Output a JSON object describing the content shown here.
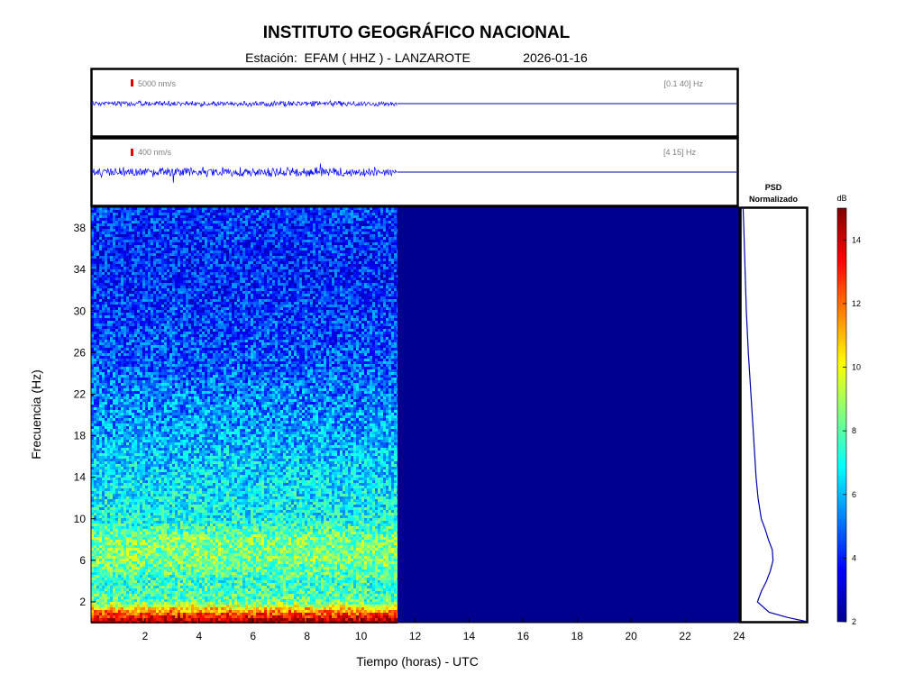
{
  "header": {
    "title": "INSTITUTO GEOGRÁFICO NACIONAL",
    "station_label": "Estación:",
    "station": "EFAM ( HHZ ) - LANZAROTE",
    "date": "2026-01-16"
  },
  "chart_data": [
    {
      "type": "line",
      "panel": "waveform-broadband",
      "scale_label": "5000 nm/s",
      "filter_label": "[0.1 40] Hz",
      "x_range": [
        0,
        24
      ],
      "data_end_hour": 11.35,
      "color": "#0000ff"
    },
    {
      "type": "line",
      "panel": "waveform-filtered",
      "scale_label": "400 nm/s",
      "filter_label": "[4 15] Hz",
      "x_range": [
        0,
        24
      ],
      "data_end_hour": 11.35,
      "color": "#0000ff"
    },
    {
      "type": "heatmap",
      "panel": "spectrogram",
      "xlabel": "Tiempo (horas) - UTC",
      "ylabel": "Frecuencia  (Hz)",
      "xlim": [
        0,
        24
      ],
      "ylim": [
        0,
        40
      ],
      "x_ticks": [
        2,
        4,
        6,
        8,
        10,
        12,
        14,
        16,
        18,
        20,
        22,
        24
      ],
      "y_ticks": [
        2,
        6,
        10,
        14,
        18,
        22,
        26,
        30,
        34,
        38
      ],
      "data_end_hour": 11.35,
      "colorbar": {
        "label": "dB",
        "range": [
          2,
          15
        ],
        "ticks": [
          2,
          4,
          6,
          8,
          10,
          12,
          14
        ],
        "colormap": "jet"
      },
      "level_profile_db": [
        {
          "freq": 0.5,
          "db": 13.5
        },
        {
          "freq": 1,
          "db": 12
        },
        {
          "freq": 2,
          "db": 8
        },
        {
          "freq": 4,
          "db": 7.5
        },
        {
          "freq": 6,
          "db": 8.5
        },
        {
          "freq": 8,
          "db": 8.5
        },
        {
          "freq": 10,
          "db": 7
        },
        {
          "freq": 14,
          "db": 6.5
        },
        {
          "freq": 18,
          "db": 5.8
        },
        {
          "freq": 22,
          "db": 5.2
        },
        {
          "freq": 26,
          "db": 4.6
        },
        {
          "freq": 30,
          "db": 4.3
        },
        {
          "freq": 34,
          "db": 4.0
        },
        {
          "freq": 38,
          "db": 4.2
        },
        {
          "freq": 40,
          "db": 4.3
        }
      ]
    },
    {
      "type": "line",
      "panel": "psd",
      "title_line1": "PSD",
      "title_line2": "Normalizado",
      "ylim": [
        0,
        40
      ],
      "color": "#0000aa",
      "points": [
        {
          "freq": 0.1,
          "value": 1.0
        },
        {
          "freq": 0.5,
          "value": 0.7
        },
        {
          "freq": 1.0,
          "value": 0.42
        },
        {
          "freq": 2.0,
          "value": 0.24
        },
        {
          "freq": 3.0,
          "value": 0.3
        },
        {
          "freq": 4.0,
          "value": 0.38
        },
        {
          "freq": 5.0,
          "value": 0.44
        },
        {
          "freq": 6.0,
          "value": 0.48
        },
        {
          "freq": 7.0,
          "value": 0.47
        },
        {
          "freq": 8.0,
          "value": 0.41
        },
        {
          "freq": 9.0,
          "value": 0.36
        },
        {
          "freq": 10.0,
          "value": 0.3
        },
        {
          "freq": 12.0,
          "value": 0.25
        },
        {
          "freq": 14.0,
          "value": 0.22
        },
        {
          "freq": 18.0,
          "value": 0.18
        },
        {
          "freq": 22.0,
          "value": 0.14
        },
        {
          "freq": 26.0,
          "value": 0.1
        },
        {
          "freq": 30.0,
          "value": 0.07
        },
        {
          "freq": 34.0,
          "value": 0.05
        },
        {
          "freq": 38.0,
          "value": 0.03
        },
        {
          "freq": 40.0,
          "value": 0.02
        }
      ]
    }
  ]
}
